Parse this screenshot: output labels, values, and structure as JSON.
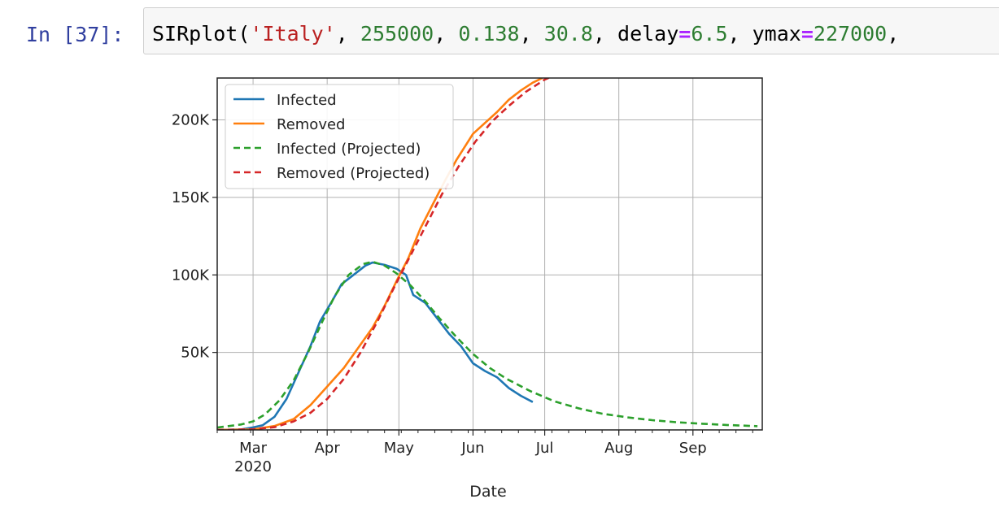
{
  "cell": {
    "prompt": "In [37]:",
    "code_tokens": [
      {
        "t": "SIRplot",
        "c": "tok-fn"
      },
      {
        "t": "(",
        "c": "tok-p"
      },
      {
        "t": "'Italy'",
        "c": "tok-str"
      },
      {
        "t": ", ",
        "c": "tok-p"
      },
      {
        "t": "255000",
        "c": "tok-num"
      },
      {
        "t": ", ",
        "c": "tok-p"
      },
      {
        "t": "0.138",
        "c": "tok-num"
      },
      {
        "t": ", ",
        "c": "tok-p"
      },
      {
        "t": "30.8",
        "c": "tok-num"
      },
      {
        "t": ", ",
        "c": "tok-p"
      },
      {
        "t": "delay",
        "c": "tok-p"
      },
      {
        "t": "=",
        "c": "tok-op"
      },
      {
        "t": "6.5",
        "c": "tok-num"
      },
      {
        "t": ", ",
        "c": "tok-p"
      },
      {
        "t": "ymax",
        "c": "tok-p"
      },
      {
        "t": "=",
        "c": "tok-op"
      },
      {
        "t": "227000",
        "c": "tok-num"
      },
      {
        "t": ",",
        "c": "tok-p"
      }
    ]
  },
  "chart_data": {
    "type": "line",
    "title": "",
    "xlabel": "Date",
    "ylabel": "",
    "xlim": [
      "2020-02-15",
      "2020-09-30"
    ],
    "ylim": [
      0,
      227000
    ],
    "grid": true,
    "legend_position": "top-left",
    "x_ticks": [
      {
        "date": "2020-03-01",
        "label": "Mar",
        "sublabel": "2020"
      },
      {
        "date": "2020-04-01",
        "label": "Apr"
      },
      {
        "date": "2020-05-01",
        "label": "May"
      },
      {
        "date": "2020-06-01",
        "label": "Jun"
      },
      {
        "date": "2020-07-01",
        "label": "Jul"
      },
      {
        "date": "2020-08-01",
        "label": "Aug"
      },
      {
        "date": "2020-09-01",
        "label": "Sep"
      }
    ],
    "y_ticks": [
      {
        "value": 50000,
        "label": "50K"
      },
      {
        "value": 100000,
        "label": "100K"
      },
      {
        "value": 150000,
        "label": "150K"
      },
      {
        "value": 200000,
        "label": "200K"
      }
    ],
    "series": [
      {
        "name": "Infected",
        "color": "#1f77b4",
        "style": "solid",
        "points": [
          [
            "2020-02-15",
            0
          ],
          [
            "2020-02-25",
            300
          ],
          [
            "2020-03-01",
            1600
          ],
          [
            "2020-03-05",
            3000
          ],
          [
            "2020-03-10",
            8500
          ],
          [
            "2020-03-15",
            20000
          ],
          [
            "2020-03-20",
            37000
          ],
          [
            "2020-03-25",
            54000
          ],
          [
            "2020-03-29",
            70000
          ],
          [
            "2020-04-03",
            83000
          ],
          [
            "2020-04-07",
            94000
          ],
          [
            "2020-04-12",
            100000
          ],
          [
            "2020-04-17",
            106000
          ],
          [
            "2020-04-20",
            108000
          ],
          [
            "2020-04-25",
            106500
          ],
          [
            "2020-04-30",
            104000
          ],
          [
            "2020-05-04",
            100000
          ],
          [
            "2020-05-07",
            87000
          ],
          [
            "2020-05-12",
            82000
          ],
          [
            "2020-05-17",
            72000
          ],
          [
            "2020-05-22",
            62000
          ],
          [
            "2020-05-27",
            54000
          ],
          [
            "2020-06-01",
            43000
          ],
          [
            "2020-06-06",
            38000
          ],
          [
            "2020-06-11",
            34000
          ],
          [
            "2020-06-16",
            27000
          ],
          [
            "2020-06-21",
            22000
          ],
          [
            "2020-06-26",
            18000
          ]
        ]
      },
      {
        "name": "Removed",
        "color": "#ff7f0e",
        "style": "solid",
        "points": [
          [
            "2020-02-15",
            0
          ],
          [
            "2020-03-01",
            300
          ],
          [
            "2020-03-10",
            2500
          ],
          [
            "2020-03-18",
            7000
          ],
          [
            "2020-03-25",
            16000
          ],
          [
            "2020-04-01",
            28000
          ],
          [
            "2020-04-08",
            40000
          ],
          [
            "2020-04-14",
            53000
          ],
          [
            "2020-04-20",
            66000
          ],
          [
            "2020-04-25",
            80000
          ],
          [
            "2020-04-30",
            96000
          ],
          [
            "2020-05-05",
            111000
          ],
          [
            "2020-05-10",
            130000
          ],
          [
            "2020-05-15",
            145000
          ],
          [
            "2020-05-20",
            160000
          ],
          [
            "2020-05-25",
            174000
          ],
          [
            "2020-06-01",
            191000
          ],
          [
            "2020-06-06",
            198000
          ],
          [
            "2020-06-11",
            205000
          ],
          [
            "2020-06-16",
            213000
          ],
          [
            "2020-06-21",
            219000
          ],
          [
            "2020-06-26",
            224000
          ],
          [
            "2020-06-30",
            227000
          ]
        ]
      },
      {
        "name": "Infected (Projected)",
        "color": "#2ca02c",
        "style": "dashed",
        "points": [
          [
            "2020-02-15",
            1500
          ],
          [
            "2020-02-25",
            3500
          ],
          [
            "2020-03-01",
            5500
          ],
          [
            "2020-03-06",
            10000
          ],
          [
            "2020-03-12",
            19000
          ],
          [
            "2020-03-18",
            32000
          ],
          [
            "2020-03-24",
            50000
          ],
          [
            "2020-03-30",
            70000
          ],
          [
            "2020-04-04",
            86000
          ],
          [
            "2020-04-10",
            100000
          ],
          [
            "2020-04-16",
            107000
          ],
          [
            "2020-04-20",
            108500
          ],
          [
            "2020-04-25",
            106000
          ],
          [
            "2020-04-30",
            101000
          ],
          [
            "2020-05-06",
            93000
          ],
          [
            "2020-05-12",
            83000
          ],
          [
            "2020-05-18",
            72000
          ],
          [
            "2020-05-25",
            60000
          ],
          [
            "2020-06-01",
            49000
          ],
          [
            "2020-06-08",
            40000
          ],
          [
            "2020-06-15",
            33000
          ],
          [
            "2020-06-25",
            25000
          ],
          [
            "2020-07-05",
            18500
          ],
          [
            "2020-07-15",
            14000
          ],
          [
            "2020-07-25",
            10500
          ],
          [
            "2020-08-05",
            8000
          ],
          [
            "2020-08-15",
            6300
          ],
          [
            "2020-08-25",
            5000
          ],
          [
            "2020-09-05",
            4000
          ],
          [
            "2020-09-15",
            3200
          ],
          [
            "2020-09-28",
            2400
          ]
        ]
      },
      {
        "name": "Removed (Projected)",
        "color": "#d62728",
        "style": "dashed",
        "points": [
          [
            "2020-02-15",
            0
          ],
          [
            "2020-03-01",
            400
          ],
          [
            "2020-03-10",
            1800
          ],
          [
            "2020-03-18",
            5500
          ],
          [
            "2020-03-25",
            11000
          ],
          [
            "2020-04-01",
            20000
          ],
          [
            "2020-04-08",
            33000
          ],
          [
            "2020-04-15",
            50000
          ],
          [
            "2020-04-22",
            70000
          ],
          [
            "2020-04-29",
            92000
          ],
          [
            "2020-05-05",
            110000
          ],
          [
            "2020-05-12",
            131000
          ],
          [
            "2020-05-19",
            152000
          ],
          [
            "2020-05-26",
            170000
          ],
          [
            "2020-06-02",
            186000
          ],
          [
            "2020-06-09",
            199000
          ],
          [
            "2020-06-16",
            209000
          ],
          [
            "2020-06-23",
            218000
          ],
          [
            "2020-07-01",
            226000
          ],
          [
            "2020-07-04",
            228000
          ]
        ]
      }
    ]
  }
}
